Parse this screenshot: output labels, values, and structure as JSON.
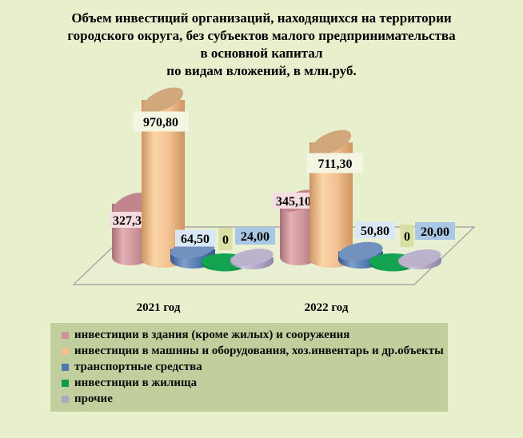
{
  "title": {
    "lines": [
      "Объем инвестиций организаций, находящихся на территории",
      "городского округа, без субъектов малого предпринимательства",
      "в основной капитал",
      "по видам вложений, в млн.руб."
    ]
  },
  "chart_data": {
    "type": "bar",
    "style": "3d-cylinder",
    "unit": "млн.руб.",
    "categories": [
      "2021 год",
      "2022 год"
    ],
    "legend_position": "bottom-left",
    "background_color": "#e7efcd",
    "legend_background_color": "#c1cf9d",
    "series": [
      {
        "id": "buildings",
        "name": "инвестиции в здания (кроме жилых) и сооружения",
        "values": [
          327.3,
          345.1
        ],
        "value_labels": [
          "327,30",
          "345,10"
        ],
        "label_bg": "#f7dce1",
        "colors": {
          "dark": "#a86f78",
          "light": "#e3b0b6",
          "mid": "#cd929a",
          "top": "#c2858e"
        }
      },
      {
        "id": "machines",
        "name": "инвестиции в машины и оборудования, хоз.инвентарь и др.объекты",
        "values": [
          970.8,
          711.3
        ],
        "value_labels": [
          "970,80",
          "711,30"
        ],
        "label_bg": "#f5f5e4",
        "colors": {
          "dark": "#cc9460",
          "light": "#fbd5a7",
          "mid": "#f2bf90",
          "top": "#d0a87c"
        }
      },
      {
        "id": "transport",
        "name": "транспортные средства",
        "values": [
          64.5,
          50.8
        ],
        "value_labels": [
          "64,50",
          "50,80"
        ],
        "label_bg": "#d9e6f5",
        "colors": {
          "dark": "#35588f",
          "light": "#7f9ecb",
          "mid": "#4f78b0",
          "top": "#7391bf"
        }
      },
      {
        "id": "housing",
        "name": "инвестиции в жилища",
        "values": [
          0,
          0
        ],
        "value_labels": [
          "0",
          "0"
        ],
        "label_bg": "#d9e0a3",
        "colors": {
          "dark": "#0a7d3c",
          "light": "#19ab56",
          "mid": "#0f9c4a",
          "top": "#14a350"
        }
      },
      {
        "id": "other",
        "name": "прочие",
        "values": [
          24.0,
          20.0
        ],
        "value_labels": [
          "24,00",
          "20,00"
        ],
        "label_bg": "#a9c6e4",
        "colors": {
          "dark": "#8f84aa",
          "light": "#cfc7e0",
          "mid": "#b0a5c4",
          "top": "#bcb2ce"
        }
      }
    ]
  }
}
